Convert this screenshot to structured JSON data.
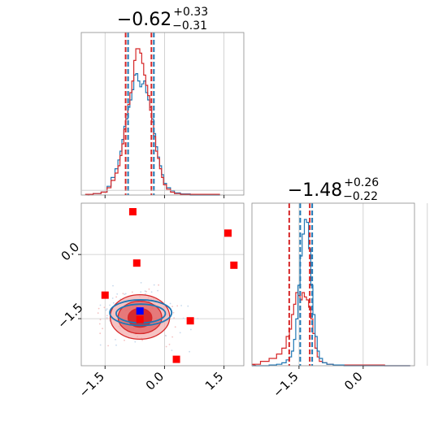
{
  "chart_data": {
    "type": "corner",
    "colors": {
      "red": "#d62728",
      "blue": "#1f77b4",
      "best_fit": "#0000ff",
      "points": "#ff0000"
    },
    "titles": [
      {
        "main": "−0.62",
        "plus": "+0.33",
        "minus": "−0.31"
      },
      {
        "main": "−1.48",
        "plus": "+0.26",
        "minus": "−0.22"
      }
    ],
    "param1_range": [
      -2.1,
      2.0
    ],
    "param2_range": [
      -2.6,
      1.2
    ],
    "ticks": {
      "values": [
        -1.5,
        0.0,
        1.5
      ],
      "labels": [
        "−1.5",
        "0.0",
        "1.5"
      ]
    },
    "grid": true,
    "hist1": {
      "quantile_lines_red": [
        -0.95,
        -0.3
      ],
      "quantile_lines_blue": [
        -0.95,
        -0.3
      ],
      "bin_centers": [
        -1.9,
        -1.7,
        -1.5,
        -1.4,
        -1.3,
        -1.2,
        -1.15,
        -1.1,
        -1.05,
        -1.0,
        -0.95,
        -0.9,
        -0.85,
        -0.8,
        -0.75,
        -0.7,
        -0.65,
        -0.6,
        -0.55,
        -0.5,
        -0.45,
        -0.4,
        -0.35,
        -0.3,
        -0.25,
        -0.2,
        -0.15,
        -0.1,
        -0.05,
        0.0,
        0.1,
        0.2,
        0.3,
        0.5,
        0.8,
        1.2
      ],
      "red": [
        0.005,
        0.01,
        0.02,
        0.05,
        0.1,
        0.15,
        0.2,
        0.27,
        0.35,
        0.45,
        0.55,
        0.62,
        0.7,
        0.78,
        0.92,
        1.0,
        1.0,
        0.97,
        0.9,
        0.82,
        0.75,
        0.68,
        0.58,
        0.5,
        0.4,
        0.3,
        0.25,
        0.18,
        0.12,
        0.07,
        0.04,
        0.02,
        0.01,
        0.005,
        0.005,
        0.005
      ],
      "blue": [
        0.005,
        0.01,
        0.02,
        0.06,
        0.12,
        0.18,
        0.24,
        0.3,
        0.38,
        0.47,
        0.52,
        0.6,
        0.65,
        0.72,
        0.82,
        0.83,
        0.78,
        0.74,
        0.76,
        0.78,
        0.7,
        0.65,
        0.6,
        0.52,
        0.42,
        0.33,
        0.26,
        0.2,
        0.14,
        0.08,
        0.05,
        0.03,
        0.015,
        0.008,
        0.0,
        0.0
      ]
    },
    "hist2": {
      "quantile_lines_red": [
        -1.7,
        -1.22
      ],
      "quantile_lines_blue": [
        -1.5,
        -1.22
      ],
      "bin_centers": [
        -2.5,
        -2.3,
        -2.1,
        -1.95,
        -1.85,
        -1.75,
        -1.7,
        -1.65,
        -1.6,
        -1.55,
        -1.5,
        -1.45,
        -1.4,
        -1.35,
        -1.3,
        -1.25,
        -1.2,
        -1.15,
        -1.1,
        -1.05,
        -1.0,
        -0.9,
        -0.8,
        -0.6,
        -0.3,
        0.2,
        0.8
      ],
      "red": [
        0.01,
        0.03,
        0.05,
        0.08,
        0.12,
        0.2,
        0.25,
        0.35,
        0.42,
        0.5,
        0.48,
        0.45,
        0.5,
        0.47,
        0.45,
        0.4,
        0.32,
        0.22,
        0.12,
        0.06,
        0.03,
        0.02,
        0.01,
        0.005,
        0.005,
        0.005,
        0.0
      ],
      "blue": [
        0.0,
        0.0,
        0.005,
        0.01,
        0.02,
        0.04,
        0.06,
        0.1,
        0.18,
        0.32,
        0.55,
        0.75,
        0.9,
        1.0,
        0.98,
        0.8,
        0.55,
        0.35,
        0.2,
        0.1,
        0.05,
        0.02,
        0.01,
        0.005,
        0.0,
        0.0,
        0.0
      ]
    },
    "contour_red_levels": [
      {
        "cx": -0.62,
        "cy": -1.48,
        "rx": 0.3,
        "ry": 0.22,
        "fill": "#d62728",
        "alpha": 0.95
      },
      {
        "cx": -0.62,
        "cy": -1.47,
        "rx": 0.55,
        "ry": 0.38,
        "fill": "#e06062",
        "alpha": 0.75
      },
      {
        "cx": -0.62,
        "cy": -1.46,
        "rx": 0.75,
        "ry": 0.52,
        "fill": "#f2a9aa",
        "alpha": 0.7
      }
    ],
    "contour_blue_levels": [
      {
        "cx": -0.6,
        "cy": -1.38,
        "rx": 0.62,
        "ry": 0.22
      },
      {
        "cx": -0.6,
        "cy": -1.36,
        "rx": 0.78,
        "ry": 0.3
      }
    ],
    "best_fit": {
      "x": -0.62,
      "y": -1.32
    },
    "points": [
      {
        "x": -0.8,
        "y": 1.0
      },
      {
        "x": 1.6,
        "y": 0.5
      },
      {
        "x": 1.75,
        "y": -0.25
      },
      {
        "x": -0.7,
        "y": -0.2
      },
      {
        "x": -1.5,
        "y": -0.95
      },
      {
        "x": 0.65,
        "y": -1.55
      },
      {
        "x": 0.3,
        "y": -2.45
      },
      {
        "x": -0.62,
        "y": -1.52
      }
    ]
  }
}
